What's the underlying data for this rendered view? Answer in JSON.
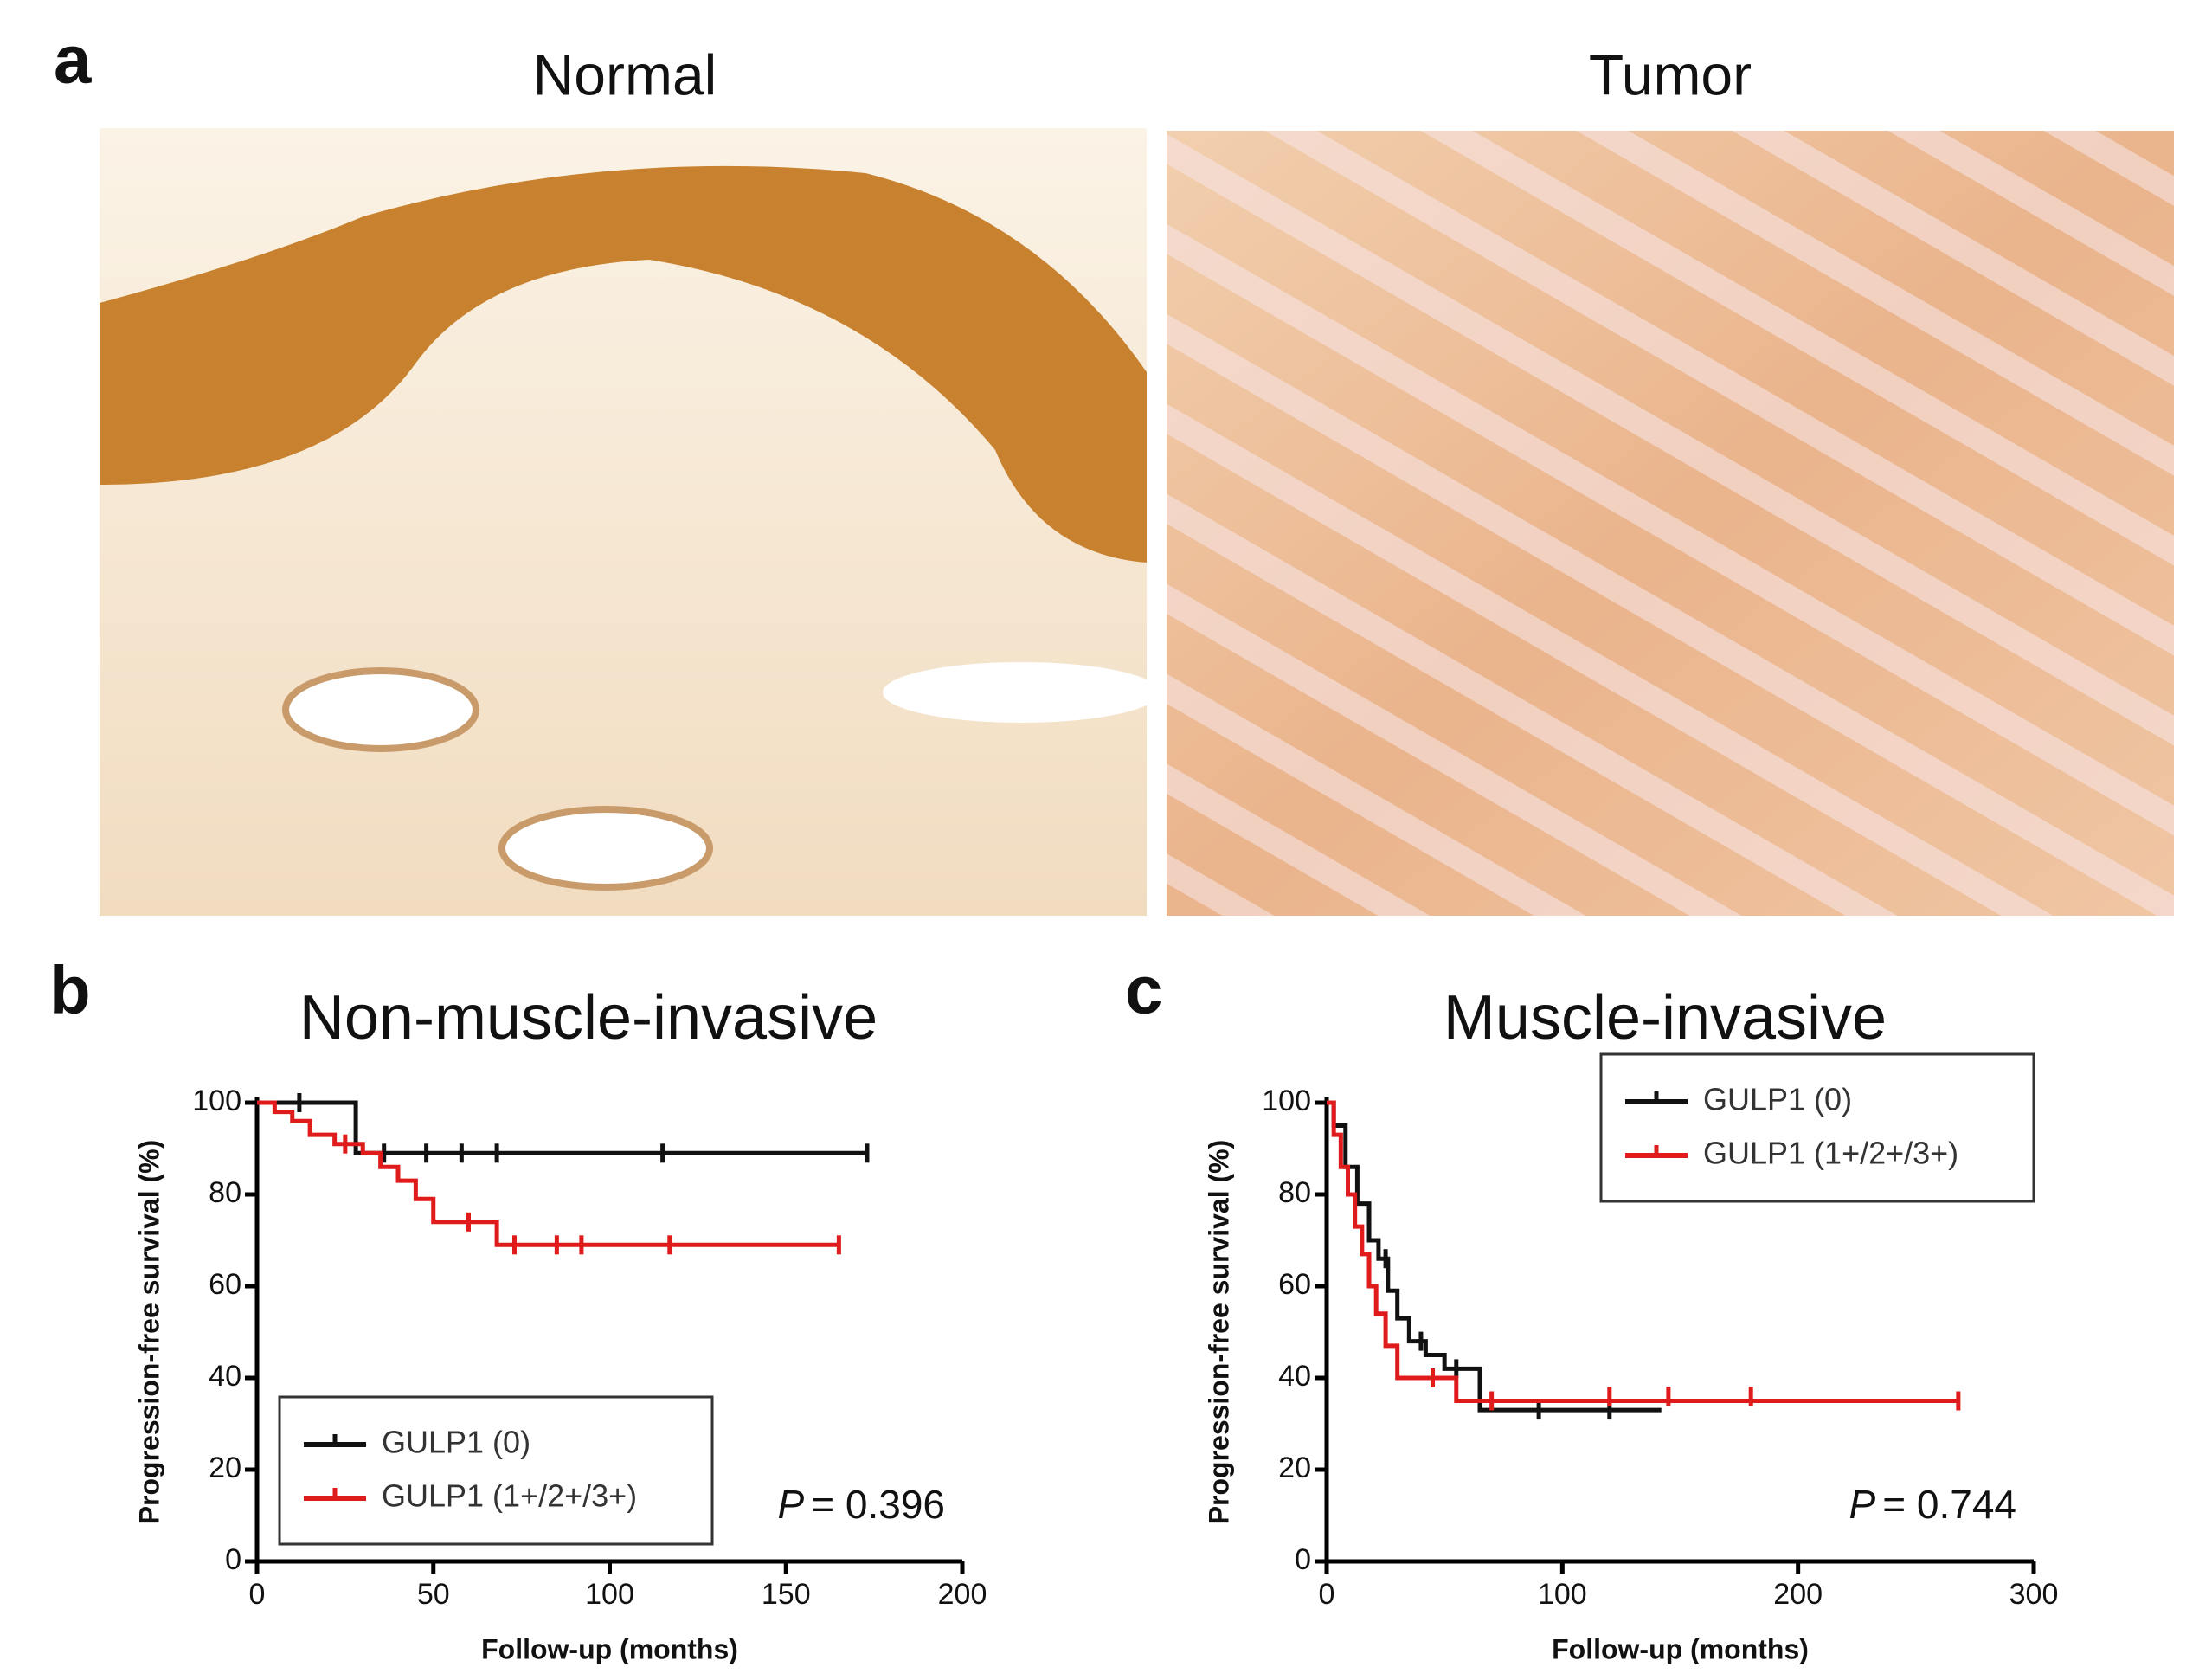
{
  "panel_a": {
    "label": "a",
    "titles": [
      "Normal",
      "Tumor"
    ]
  },
  "chart_data": [
    {
      "type": "step",
      "panel_label": "b",
      "title": "Non-muscle-invasive",
      "xlabel": "Follow-up (months)",
      "ylabel": "Progression-free survival (%)",
      "xlim": [
        0,
        200
      ],
      "xticks": [
        0,
        50,
        100,
        150,
        200
      ],
      "ylim": [
        0,
        100
      ],
      "yticks": [
        0,
        20,
        40,
        60,
        80,
        100
      ],
      "legend": "lower left",
      "p_label": "P",
      "p_value": "= 0.396",
      "series": [
        {
          "name": "GULP1 (0)",
          "color": "#111111",
          "x": [
            0,
            28,
            173
          ],
          "values": [
            100,
            89,
            89
          ],
          "censor_x": [
            12,
            36,
            48,
            58,
            68,
            115,
            173
          ],
          "censor_y": [
            100,
            89,
            89,
            89,
            89,
            89,
            89
          ]
        },
        {
          "name": "GULP1 (1+/2+/3+)",
          "color": "#e01b1b",
          "x": [
            0,
            5,
            10,
            15,
            22,
            30,
            35,
            40,
            45,
            50,
            68,
            165
          ],
          "values": [
            100,
            98,
            96,
            93,
            91,
            89,
            86,
            83,
            79,
            74,
            69,
            69
          ],
          "censor_x": [
            25,
            60,
            73,
            85,
            92,
            117,
            165
          ],
          "censor_y": [
            91,
            74,
            69,
            69,
            69,
            69,
            69
          ]
        }
      ]
    },
    {
      "type": "step",
      "panel_label": "c",
      "title": "Muscle-invasive",
      "xlabel": "Follow-up (months)",
      "ylabel": "Progression-free survival (%)",
      "xlim": [
        0,
        300
      ],
      "xticks": [
        0,
        100,
        200,
        300
      ],
      "ylim": [
        0,
        100
      ],
      "yticks": [
        0,
        20,
        40,
        60,
        80,
        100
      ],
      "legend": "upper right",
      "p_label": "P",
      "p_value": "= 0.744",
      "series": [
        {
          "name": "GULP1 (0)",
          "color": "#111111",
          "x": [
            0,
            3,
            8,
            13,
            18,
            22,
            26,
            30,
            35,
            42,
            50,
            65,
            142
          ],
          "values": [
            100,
            95,
            86,
            78,
            70,
            66,
            59,
            53,
            48,
            45,
            42,
            33,
            33
          ],
          "censor_x": [
            25,
            40,
            55,
            90,
            120
          ],
          "censor_y": [
            66,
            48,
            42,
            33,
            33
          ]
        },
        {
          "name": "GULP1 (1+/2+/3+)",
          "color": "#e01b1b",
          "x": [
            0,
            3,
            6,
            9,
            12,
            15,
            18,
            21,
            25,
            30,
            55,
            268
          ],
          "values": [
            100,
            93,
            86,
            80,
            73,
            67,
            60,
            54,
            47,
            40,
            35,
            35
          ],
          "censor_x": [
            45,
            70,
            120,
            145,
            180,
            268
          ],
          "censor_y": [
            40,
            35,
            36,
            36,
            36,
            35
          ]
        }
      ]
    }
  ]
}
